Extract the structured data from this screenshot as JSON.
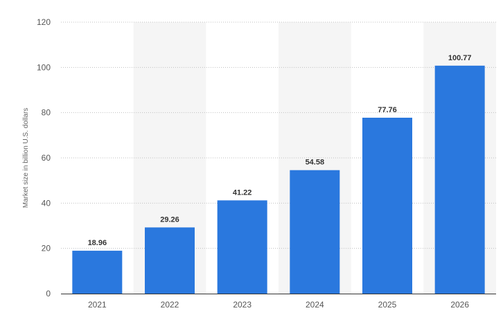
{
  "chart_data": {
    "type": "bar",
    "title": "",
    "xlabel": "",
    "ylabel": "Market size in billion U.S. dollars",
    "categories": [
      "2021",
      "2022",
      "2023",
      "2024",
      "2025",
      "2026"
    ],
    "values": [
      18.96,
      29.26,
      41.22,
      54.58,
      77.76,
      100.77
    ],
    "value_labels": [
      "18.96",
      "29.26",
      "41.22",
      "54.58",
      "77.76",
      "100.77"
    ],
    "ylim": [
      0,
      120
    ],
    "yticks": [
      0,
      20,
      40,
      60,
      80,
      100,
      120
    ],
    "grid": true,
    "legend": "none"
  },
  "colors": {
    "bar": "#2a78de",
    "band": "#f5f5f5",
    "grid": "#bfbfbf",
    "axis": "#333333"
  }
}
